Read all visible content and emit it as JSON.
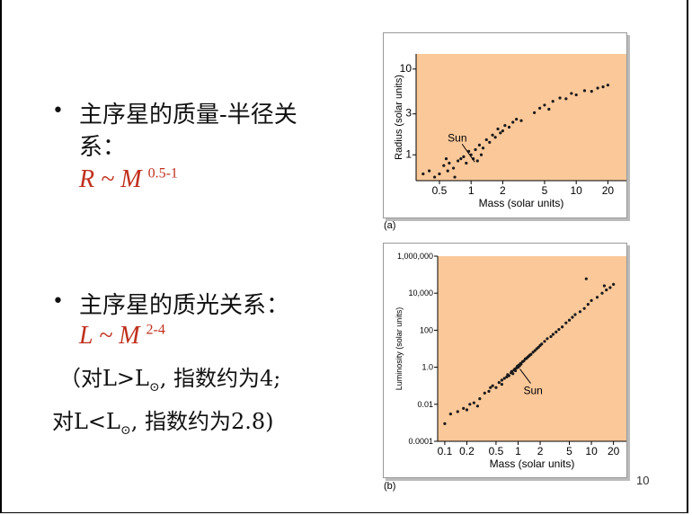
{
  "bullets": [
    {
      "line1": "主序星的质量-半径关",
      "line2": "系：",
      "formula_base": "R ~ M",
      "formula_exp": "0.5-1"
    },
    {
      "line1": "主序星的质光关系：",
      "formula_base": "L ~ M",
      "formula_exp": "2-4",
      "note1_pre": "（对L>L",
      "note1_post": ", 指数约为4;",
      "note2_pre": "对L<L",
      "note2_post": ", 指数约为2.8)",
      "sun_symbol": "⊙"
    }
  ],
  "page_number": "10",
  "colors": {
    "plot_bg": "#fbc89a",
    "formula": "#c0301c"
  },
  "chart_data": [
    {
      "type": "scatter",
      "panel_label": "(a)",
      "xlabel": "Mass (solar units)",
      "ylabel": "Radius (solar units)",
      "xscale": "log",
      "yscale": "log",
      "xlim": [
        0.3,
        30
      ],
      "ylim": [
        0.5,
        15
      ],
      "xticks": [
        0.5,
        1,
        2,
        5,
        10,
        20
      ],
      "xtick_labels": [
        "0.5",
        "1",
        "2",
        "5",
        "10",
        "20"
      ],
      "yticks": [
        1,
        3,
        10
      ],
      "ytick_labels": [
        "1",
        "3",
        "10"
      ],
      "annotation": {
        "text": "Sun",
        "x": 1,
        "y": 1
      },
      "points": [
        [
          0.35,
          0.6
        ],
        [
          0.4,
          0.65
        ],
        [
          0.45,
          0.55
        ],
        [
          0.5,
          0.6
        ],
        [
          0.55,
          0.75
        ],
        [
          0.6,
          0.65
        ],
        [
          0.62,
          0.8
        ],
        [
          0.68,
          0.7
        ],
        [
          0.75,
          0.85
        ],
        [
          0.8,
          0.9
        ],
        [
          0.85,
          0.95
        ],
        [
          0.9,
          0.8
        ],
        [
          0.95,
          1.1
        ],
        [
          1.0,
          1.0
        ],
        [
          1.05,
          0.9
        ],
        [
          1.1,
          1.15
        ],
        [
          1.15,
          0.85
        ],
        [
          1.2,
          1.3
        ],
        [
          1.3,
          1.2
        ],
        [
          1.4,
          1.5
        ],
        [
          1.5,
          1.4
        ],
        [
          1.6,
          1.7
        ],
        [
          1.7,
          1.6
        ],
        [
          1.8,
          2.0
        ],
        [
          1.9,
          1.8
        ],
        [
          2.0,
          1.9
        ],
        [
          2.1,
          2.2
        ],
        [
          2.3,
          2.1
        ],
        [
          2.5,
          2.4
        ],
        [
          2.7,
          2.6
        ],
        [
          3.0,
          2.5
        ],
        [
          0.7,
          0.55
        ],
        [
          4.0,
          3.1
        ],
        [
          4.5,
          3.5
        ],
        [
          5.0,
          3.8
        ],
        [
          5.5,
          3.4
        ],
        [
          6.0,
          4.2
        ],
        [
          7.0,
          4.6
        ],
        [
          8.0,
          4.5
        ],
        [
          9.0,
          5.2
        ],
        [
          10.0,
          5.0
        ],
        [
          12.0,
          5.6
        ],
        [
          14.0,
          5.5
        ],
        [
          16.0,
          6.0
        ],
        [
          18.0,
          6.2
        ],
        [
          20.0,
          6.5
        ],
        [
          1.25,
          1.0
        ],
        [
          0.58,
          0.9
        ]
      ]
    },
    {
      "type": "scatter",
      "panel_label": "(b)",
      "xlabel": "Mass (solar units)",
      "ylabel": "Luminosity (solar units)",
      "xscale": "log",
      "yscale": "log",
      "xlim": [
        0.08,
        30
      ],
      "ylim": [
        0.0001,
        1000000
      ],
      "xticks": [
        0.1,
        0.2,
        0.5,
        1,
        2,
        5,
        10,
        20
      ],
      "xtick_labels": [
        "0.1",
        "0.2",
        "0.5",
        "1",
        "2",
        "5",
        "10",
        "20"
      ],
      "yticks": [
        0.0001,
        0.01,
        1,
        100,
        10000,
        1000000
      ],
      "ytick_labels": [
        "0.0001",
        "0.01",
        "1.0",
        "100",
        "10,000",
        "1,000,000"
      ],
      "annotation": {
        "text": "Sun",
        "x": 1,
        "y": 1
      },
      "points": [
        [
          0.1,
          0.0009
        ],
        [
          0.12,
          0.003
        ],
        [
          0.15,
          0.004
        ],
        [
          0.18,
          0.006
        ],
        [
          0.2,
          0.005
        ],
        [
          0.22,
          0.01
        ],
        [
          0.25,
          0.012
        ],
        [
          0.3,
          0.02
        ],
        [
          0.35,
          0.04
        ],
        [
          0.4,
          0.05
        ],
        [
          0.42,
          0.08
        ],
        [
          0.45,
          0.1
        ],
        [
          0.5,
          0.08
        ],
        [
          0.55,
          0.15
        ],
        [
          0.6,
          0.2
        ],
        [
          0.65,
          0.25
        ],
        [
          0.7,
          0.3
        ],
        [
          0.72,
          0.4
        ],
        [
          0.75,
          0.35
        ],
        [
          0.8,
          0.5
        ],
        [
          0.82,
          0.6
        ],
        [
          0.85,
          0.45
        ],
        [
          0.88,
          0.7
        ],
        [
          0.9,
          0.8
        ],
        [
          0.92,
          0.65
        ],
        [
          0.95,
          0.9
        ],
        [
          0.97,
          1.1
        ],
        [
          1.0,
          1.0
        ],
        [
          1.02,
          1.3
        ],
        [
          1.05,
          1.2
        ],
        [
          1.08,
          1.6
        ],
        [
          1.1,
          1.5
        ],
        [
          1.15,
          2.0
        ],
        [
          1.2,
          2.2
        ],
        [
          1.25,
          2.8
        ],
        [
          1.3,
          3.0
        ],
        [
          1.35,
          3.5
        ],
        [
          1.4,
          4.0
        ],
        [
          1.45,
          4.5
        ],
        [
          1.5,
          5.0
        ],
        [
          1.6,
          6.5
        ],
        [
          1.7,
          8.0
        ],
        [
          1.8,
          10
        ],
        [
          1.9,
          12
        ],
        [
          2.0,
          15
        ],
        [
          2.1,
          18
        ],
        [
          2.3,
          25
        ],
        [
          2.5,
          35
        ],
        [
          2.8,
          45
        ],
        [
          3.0,
          60
        ],
        [
          3.3,
          80
        ],
        [
          3.6,
          110
        ],
        [
          4.0,
          150
        ],
        [
          4.5,
          250
        ],
        [
          5.0,
          350
        ],
        [
          5.5,
          500
        ],
        [
          6.0,
          700
        ],
        [
          7.0,
          1000
        ],
        [
          8.0,
          1500
        ],
        [
          9.0,
          2500
        ],
        [
          10.0,
          4000
        ],
        [
          12.0,
          6000
        ],
        [
          14.0,
          10000
        ],
        [
          16.0,
          15000
        ],
        [
          18.0,
          20000
        ],
        [
          20.0,
          30000
        ],
        [
          8.5,
          60000
        ],
        [
          15.0,
          25000
        ],
        [
          0.28,
          0.008
        ],
        [
          0.6,
          0.12
        ]
      ]
    }
  ]
}
